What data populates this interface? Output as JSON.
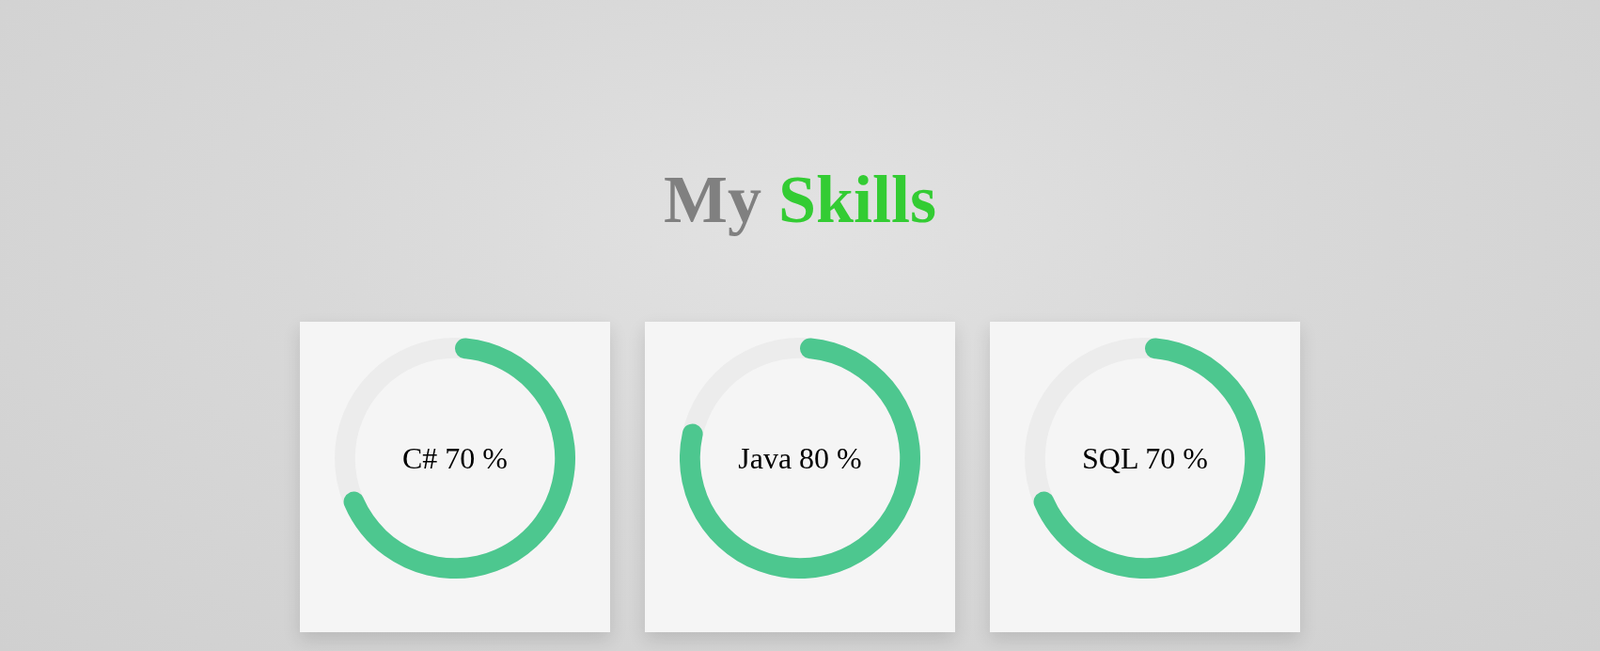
{
  "heading": "My Skills",
  "chart_data": [
    {
      "type": "doughnut",
      "title": "C# 70 %",
      "values": [
        70
      ],
      "ylim": [
        0,
        100
      ],
      "color": "#4dc78f"
    },
    {
      "type": "doughnut",
      "title": "Java 80 %",
      "values": [
        80
      ],
      "ylim": [
        0,
        100
      ],
      "color": "#4dc78f"
    },
    {
      "type": "doughnut",
      "title": "SQL 70 %",
      "values": [
        70
      ],
      "ylim": [
        0,
        100
      ],
      "color": "#4dc78f"
    }
  ]
}
